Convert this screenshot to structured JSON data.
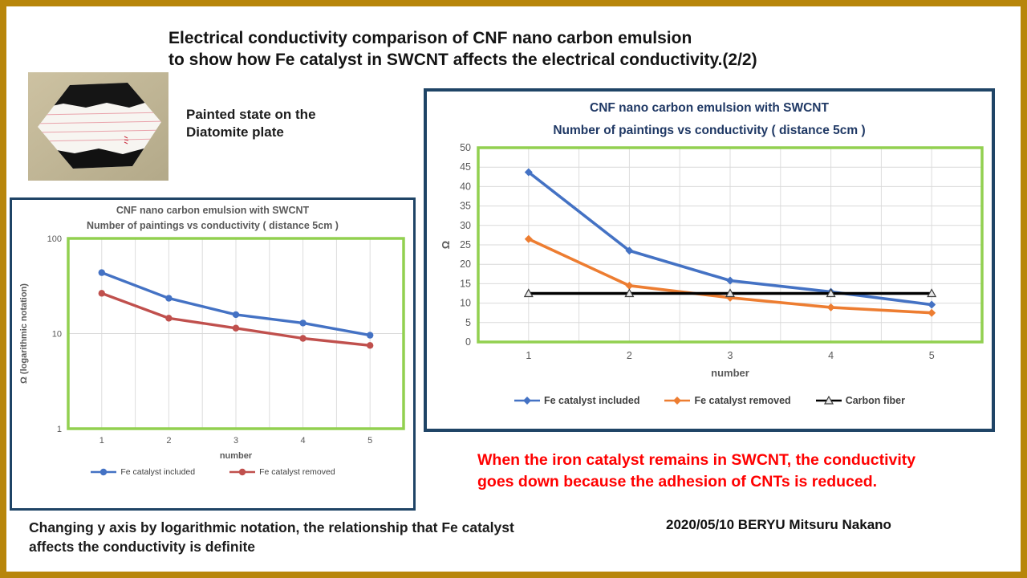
{
  "slide": {
    "title_line1": "Electrical conductivity comparison of CNF nano carbon emulsion",
    "title_line2": "to show how Fe catalyst in SWCNT affects the electrical conductivity.(2/2)",
    "photo_caption_line1": "Painted state on the",
    "photo_caption_line2": "Diatomite  plate",
    "red_note_line1": "When the iron catalyst remains in SWCNT, the conductivity",
    "red_note_line2": "goes down because the adhesion of CNTs is reduced.",
    "credit": "2020/05/10 BERYU Mitsuru Nakano",
    "note_line1": "Changing y axis by logarithmic notation, the relationship that  Fe catalyst",
    "note_line2": "affects the conductivity is definite",
    "colors": {
      "frame_gold": "#B8860B",
      "box_navy": "#1F4466",
      "title_navy": "#1F3864",
      "plot_green": "#92D050",
      "red_text": "#FF0000"
    }
  },
  "chart_data": [
    {
      "id": "log-chart",
      "type": "line",
      "title_line1": "CNF   nano carbon emulsion with SWCNT",
      "title_line2": "Number of paintings vs conductivity ( distance 5cm )",
      "x": [
        1,
        2,
        3,
        4,
        5
      ],
      "xlabel": "number",
      "ylabel": "Ω (logarithmic  notation)",
      "yscale": "log",
      "ylim": [
        1,
        100
      ],
      "yticks": [
        1,
        10,
        100
      ],
      "grid": true,
      "legend_position": "bottom",
      "series": [
        {
          "name": "Fe catalyst included",
          "color": "#4472C4",
          "marker": "circle",
          "values": [
            43.7,
            23.5,
            15.8,
            12.9,
            9.6
          ]
        },
        {
          "name": "Fe catalyst removed",
          "color": "#C0504D",
          "marker": "circle",
          "values": [
            26.5,
            14.5,
            11.4,
            8.9,
            7.5
          ]
        }
      ]
    },
    {
      "id": "linear-chart",
      "type": "line",
      "title_line1": "CNF   nano carbon emulsion with SWCNT",
      "title_line2": "Number of paintings vs conductivity ( distance 5cm )",
      "x": [
        1,
        2,
        3,
        4,
        5
      ],
      "xlabel": "number",
      "ylabel": "Ω",
      "yscale": "linear",
      "ylim": [
        0,
        50
      ],
      "yticks": [
        0,
        5,
        10,
        15,
        20,
        25,
        30,
        35,
        40,
        45,
        50
      ],
      "grid": true,
      "legend_position": "bottom",
      "series": [
        {
          "name": "Fe catalyst included",
          "color": "#4472C4",
          "marker": "diamond",
          "values": [
            43.7,
            23.5,
            15.8,
            12.9,
            9.6
          ]
        },
        {
          "name": "Fe catalyst removed",
          "color": "#ED7D31",
          "marker": "diamond",
          "values": [
            26.5,
            14.5,
            11.4,
            8.9,
            7.5
          ]
        },
        {
          "name": "Carbon fiber",
          "color": "#000000",
          "marker": "triangle-open",
          "values": [
            12.5,
            12.5,
            12.5,
            12.5,
            12.5
          ]
        }
      ]
    }
  ]
}
